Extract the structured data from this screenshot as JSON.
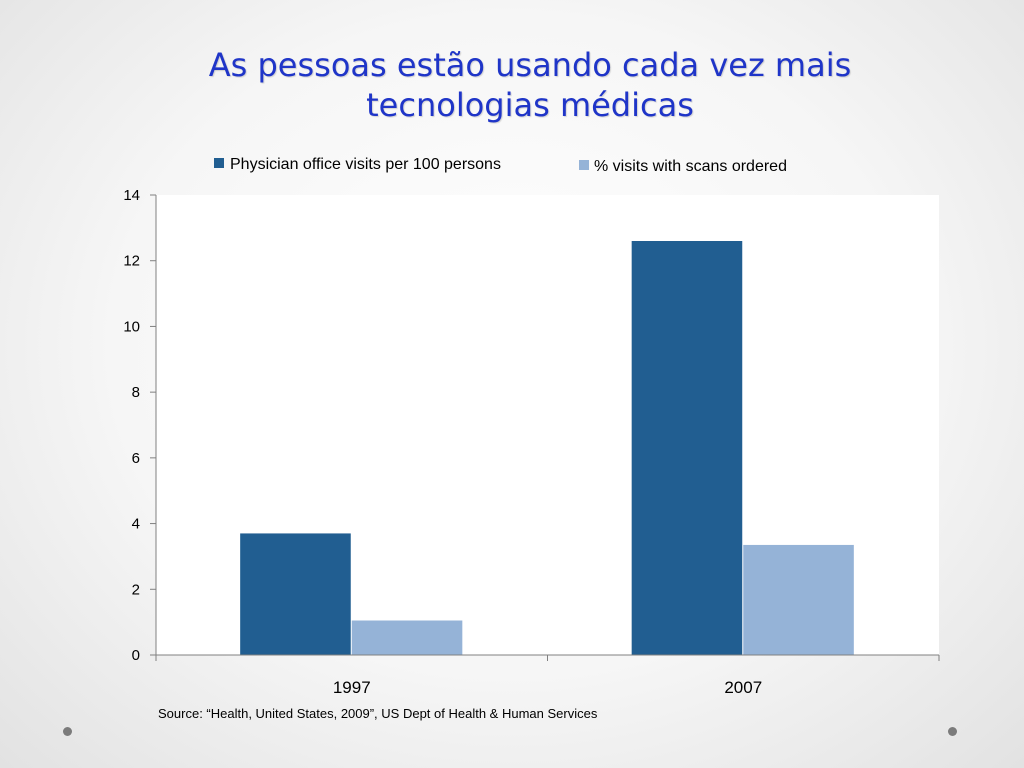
{
  "slide": {
    "title_line1": "As pessoas estão usando cada vez mais",
    "title_line2": "tecnologias médicas",
    "source": "Source: “Health, United States, 2009”, US Dept of Health & Human Services"
  },
  "chart_data": {
    "type": "bar",
    "title": "",
    "xlabel": "",
    "ylabel": "",
    "categories": [
      "1997",
      "2007"
    ],
    "series": [
      {
        "name": "Physician office visits per 100 persons",
        "values": [
          3.7,
          12.6
        ],
        "color": "#215e91"
      },
      {
        "name": "% visits with scans ordered",
        "values": [
          1.05,
          3.35
        ],
        "color": "#95b3d7"
      }
    ],
    "ylim": [
      0,
      14
    ],
    "yticks": [
      0,
      2,
      4,
      6,
      8,
      10,
      12,
      14
    ],
    "grid": false,
    "legend": "top"
  }
}
